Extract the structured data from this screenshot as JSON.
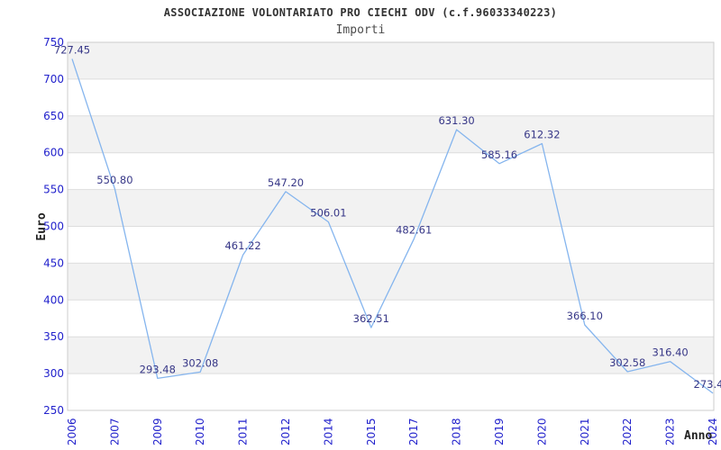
{
  "chart_data": {
    "type": "line",
    "title": "ASSOCIAZIONE VOLONTARIATO PRO CIECHI ODV (c.f.96033340223)",
    "subtitle": "Importi",
    "xlabel": "Anno",
    "ylabel": "Euro",
    "categories": [
      "2006",
      "2007",
      "2009",
      "2010",
      "2011",
      "2012",
      "2014",
      "2015",
      "2017",
      "2018",
      "2019",
      "2020",
      "2021",
      "2022",
      "2023",
      "2024"
    ],
    "values": [
      727.45,
      550.8,
      293.48,
      302.08,
      461.22,
      547.2,
      506.01,
      362.51,
      482.61,
      631.3,
      585.16,
      612.32,
      366.1,
      302.58,
      316.4,
      273.4
    ],
    "point_labels": [
      "727.45",
      "550.80",
      "293.48",
      "302.08",
      "461.22",
      "547.20",
      "506.01",
      "362.51",
      "482.61",
      "631.30",
      "585.16",
      "612.32",
      "366.10",
      "302.58",
      "316.40",
      "273.4"
    ],
    "ylim": [
      250,
      750
    ],
    "yticks": [
      250,
      300,
      350,
      400,
      450,
      500,
      550,
      600,
      650,
      700,
      750
    ],
    "grid": "horizontal-lines-with-alternating-bands",
    "legend": "none",
    "colors": {
      "line": "#85B5EE",
      "point_label": "#373787",
      "tick_label": "#2222CC",
      "band": "#F2F2F2",
      "grid_line": "#DDDDDD",
      "plot_border": "#CCCCCC",
      "title": "#333333",
      "subtitle": "#4D4D4D",
      "axis_title": "#222222"
    }
  }
}
